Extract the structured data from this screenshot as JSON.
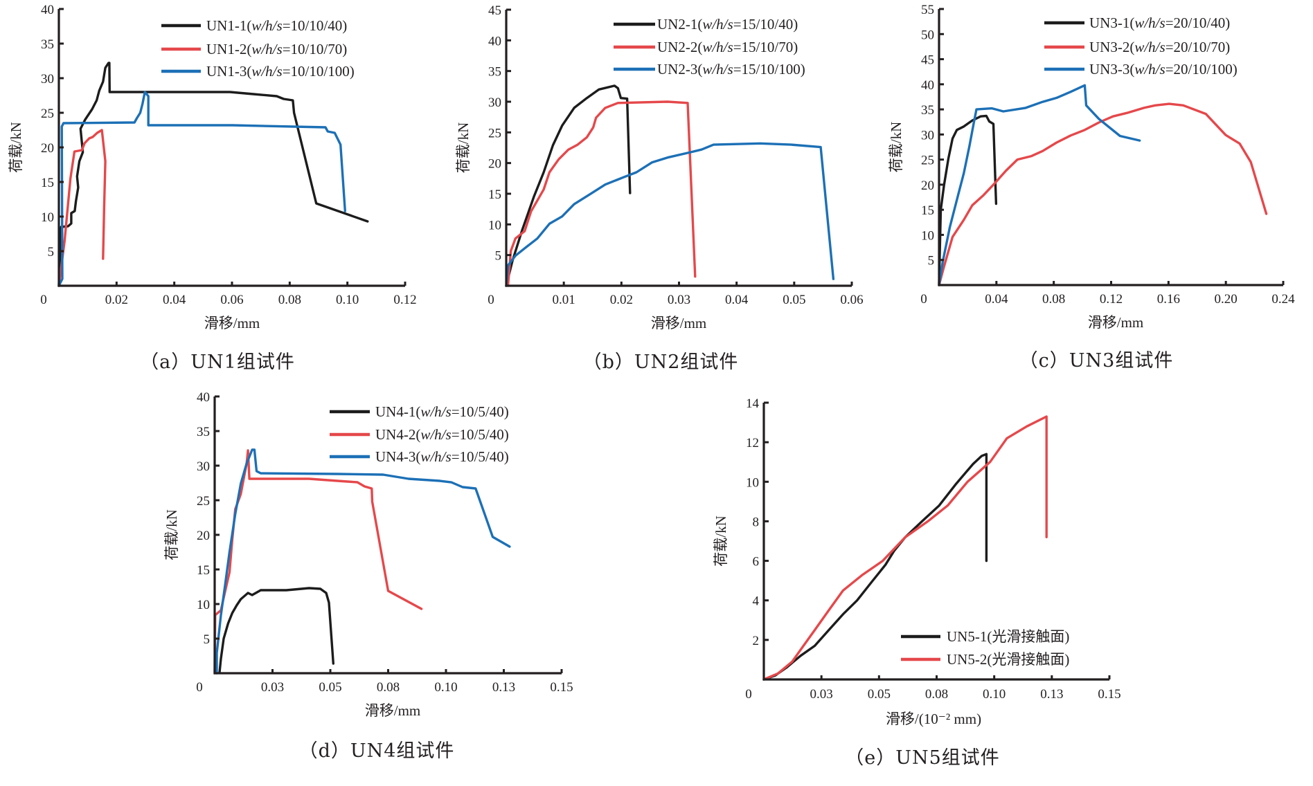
{
  "colors": {
    "black": "#1c1c1c",
    "red": "#e5484b",
    "blue": "#1c70b6",
    "axis": "#231f20"
  },
  "chart_data": [
    {
      "type": "line",
      "caption": "（a）UN1组试件",
      "xlabel": "滑移/mm",
      "ylabel": "荷载/kN",
      "xlim": [
        0,
        0.12
      ],
      "ylim": [
        0,
        40
      ],
      "xticks": [
        0,
        0.02,
        0.04,
        0.06,
        0.08,
        0.1,
        0.12
      ],
      "xtick_labels": [
        "0",
        "0.02",
        "0.04",
        "0.06",
        "0.08",
        "0.10",
        "0.12"
      ],
      "yticks": [
        5,
        10,
        15,
        20,
        25,
        30,
        35,
        40
      ],
      "ytick_labels": [
        "5",
        "10",
        "15",
        "20",
        "25",
        "30",
        "35",
        "40"
      ],
      "legend_position": "top-right",
      "series": [
        {
          "name": "UN1-1",
          "params": "w/h/s",
          "value": "=10/10/40",
          "color": "#1c1c1c",
          "x": [
            0,
            0.0008,
            0.0032,
            0.0043,
            0.0043,
            0.0055,
            0.0059,
            0.0067,
            0.0063,
            0.0071,
            0.0083,
            0.0075,
            0.0091,
            0.0115,
            0.0131,
            0.014,
            0.0153,
            0.0161,
            0.0172,
            0.0175,
            0.0176,
            0.0351,
            0.0593,
            0.0674,
            0.0755,
            0.0779,
            0.0811,
            0.0815,
            0.0892,
            0.107
          ],
          "y": [
            0,
            8.5,
            8.6,
            9,
            10.5,
            10.8,
            12.2,
            14.2,
            15.8,
            18,
            19.3,
            22.7,
            24,
            25.5,
            26.8,
            28.2,
            29.5,
            31.5,
            32.2,
            32.2,
            28,
            28,
            28,
            27.7,
            27.4,
            27,
            26.8,
            25,
            11.9,
            9.3
          ]
        },
        {
          "name": "UN1-2",
          "params": "w/h/s",
          "value": "=10/10/70",
          "color": "#e5484b",
          "x": [
            0,
            0.002,
            0.004,
            0.0054,
            0.008,
            0.0089,
            0.0105,
            0.0117,
            0.0133,
            0.0149,
            0.0161,
            0.0157,
            0.0153
          ],
          "y": [
            0,
            6.5,
            15.5,
            19.4,
            19.6,
            20.6,
            21.3,
            21.5,
            22.1,
            22.5,
            18,
            11.4,
            3.9
          ]
        },
        {
          "name": "UN1-3",
          "params": "w/h/s",
          "value": "=10/10/100",
          "color": "#1c70b6",
          "x": [
            0,
            0.0012,
            0.001,
            0.0016,
            0.0262,
            0.027,
            0.0282,
            0.029,
            0.0298,
            0.031,
            0.031,
            0.0601,
            0.0924,
            0.0932,
            0.0956,
            0.0976,
            0.0992
          ],
          "y": [
            0,
            1,
            23,
            23.5,
            23.6,
            24.2,
            25,
            26.3,
            28,
            27.4,
            23.2,
            23.2,
            22.9,
            22.3,
            22.1,
            20.4,
            10.8
          ]
        }
      ]
    },
    {
      "type": "line",
      "caption": "（b）UN2组试件",
      "xlabel": "滑移/mm",
      "ylabel": "荷载/kN",
      "xlim": [
        0,
        0.06
      ],
      "ylim": [
        0,
        45
      ],
      "xticks": [
        0,
        0.01,
        0.02,
        0.03,
        0.04,
        0.05,
        0.06
      ],
      "xtick_labels": [
        "0",
        "0.01",
        "0.02",
        "0.03",
        "0.04",
        "0.05",
        "0.06"
      ],
      "yticks": [
        5,
        10,
        15,
        20,
        25,
        30,
        35,
        40,
        45
      ],
      "ytick_labels": [
        "5",
        "10",
        "15",
        "20",
        "25",
        "30",
        "35",
        "40",
        "45"
      ],
      "legend_position": "top-right",
      "series": [
        {
          "name": "UN2-1",
          "params": "w/h/s",
          "value": "=15/10/40",
          "color": "#1c1c1c",
          "x": [
            0,
            0.0011,
            0.0027,
            0.0048,
            0.0065,
            0.0081,
            0.0097,
            0.0118,
            0.014,
            0.0161,
            0.0188,
            0.0194,
            0.0199,
            0.021,
            0.0215
          ],
          "y": [
            0,
            4.1,
            8.9,
            14.5,
            18.5,
            22.9,
            26.1,
            29,
            30.6,
            32,
            32.6,
            32.2,
            30.6,
            30.5,
            15.1
          ]
        },
        {
          "name": "UN2-2",
          "params": "w/h/s",
          "value": "=15/10/70",
          "color": "#e5484b",
          "x": [
            0.0003,
            0.0008,
            0.0016,
            0.0032,
            0.0043,
            0.0054,
            0.0065,
            0.0075,
            0.0091,
            0.0108,
            0.0124,
            0.014,
            0.0151,
            0.0156,
            0.0172,
            0.0194,
            0.028,
            0.0315,
            0.0328
          ],
          "y": [
            0,
            5.7,
            7.7,
            8.9,
            12.1,
            13.9,
            15.7,
            18.5,
            20.6,
            22.2,
            23,
            24.2,
            25.8,
            27.4,
            29,
            29.8,
            30,
            29.8,
            1.5
          ]
        },
        {
          "name": "UN2-3",
          "params": "w/h/s",
          "value": "=15/10/100",
          "color": "#1c70b6",
          "x": [
            0,
            0.0003,
            0.0016,
            0.0032,
            0.0054,
            0.0075,
            0.0097,
            0.0118,
            0.0145,
            0.0172,
            0.0204,
            0.0226,
            0.0253,
            0.028,
            0.0317,
            0.0339,
            0.036,
            0.0441,
            0.0495,
            0.0546,
            0.0568
          ],
          "y": [
            0,
            3.3,
            4.9,
            6.1,
            7.7,
            10.1,
            11.3,
            13.3,
            14.9,
            16.5,
            17.7,
            18.5,
            20.1,
            20.9,
            21.7,
            22.2,
            23,
            23.2,
            23,
            22.6,
            1.1
          ]
        }
      ]
    },
    {
      "type": "line",
      "caption": "（c）UN3组试件",
      "xlabel": "滑移/mm",
      "ylabel": "荷载/kN",
      "xlim": [
        0,
        0.24
      ],
      "ylim": [
        0,
        55
      ],
      "xticks": [
        0,
        0.04,
        0.08,
        0.12,
        0.16,
        0.2,
        0.24
      ],
      "xtick_labels": [
        "0",
        "0.04",
        "0.08",
        "0.12",
        "0.16",
        "0.20",
        "0.24"
      ],
      "yticks": [
        5,
        10,
        15,
        20,
        25,
        30,
        35,
        40,
        45,
        50,
        55
      ],
      "ytick_labels": [
        "5",
        "10",
        "15",
        "20",
        "25",
        "30",
        "35",
        "40",
        "45",
        "50",
        "55"
      ],
      "legend_position": "top-right",
      "series": [
        {
          "name": "UN3-1",
          "params": "w/h/s",
          "value": "=20/10/40",
          "color": "#1c1c1c",
          "x": [
            0,
            0.0012,
            0.0035,
            0.0065,
            0.0094,
            0.0124,
            0.0173,
            0.0232,
            0.029,
            0.033,
            0.035,
            0.0379,
            0.0398
          ],
          "y": [
            0,
            15,
            19.9,
            25.2,
            29.2,
            30.9,
            31.6,
            32.8,
            33.6,
            33.7,
            32.6,
            32.1,
            16.2
          ]
        },
        {
          "name": "UN3-2",
          "params": "w/h/s",
          "value": "=20/10/70",
          "color": "#e5484b",
          "x": [
            0,
            0.0035,
            0.0094,
            0.0173,
            0.0232,
            0.031,
            0.0389,
            0.0467,
            0.0546,
            0.0644,
            0.0722,
            0.082,
            0.0918,
            0.1016,
            0.1115,
            0.1213,
            0.1311,
            0.1429,
            0.1507,
            0.1605,
            0.1703,
            0.186,
            0.1998,
            0.2096,
            0.2174,
            0.2282
          ],
          "y": [
            0,
            3.7,
            9.6,
            13,
            15.9,
            17.9,
            20.3,
            22.8,
            25,
            25.7,
            26.7,
            28.4,
            29.8,
            30.9,
            32.4,
            33.6,
            34.3,
            35.3,
            35.8,
            36.1,
            35.8,
            34.1,
            29.9,
            28.2,
            24.5,
            14.2
          ]
        },
        {
          "name": "UN3-3",
          "params": "w/h/s",
          "value": "=20/10/100",
          "color": "#1c70b6",
          "x": [
            0,
            0.0026,
            0.0075,
            0.0133,
            0.0173,
            0.0212,
            0.0241,
            0.0261,
            0.0369,
            0.0448,
            0.0604,
            0.0722,
            0.082,
            0.0918,
            0.1016,
            0.1026,
            0.1115,
            0.1262,
            0.1399
          ],
          "y": [
            0,
            4.7,
            11.5,
            17.9,
            22.3,
            27.7,
            32.1,
            35,
            35.2,
            34.6,
            35.3,
            36.5,
            37.3,
            38.5,
            39.8,
            35.8,
            33.1,
            29.7,
            28.8
          ]
        }
      ]
    },
    {
      "type": "line",
      "caption": "（d）UN4组试件",
      "xlabel": "滑移/mm",
      "ylabel": "荷载/kN",
      "xlim": [
        0,
        0.15
      ],
      "ylim": [
        0,
        40
      ],
      "xticks": [
        0,
        0.025,
        0.05,
        0.075,
        0.1,
        0.125,
        0.15
      ],
      "xtick_labels": [
        "0",
        "0.03",
        "0.05",
        "0.08",
        "0.10",
        "0.13",
        "0.15"
      ],
      "yticks": [
        5,
        10,
        15,
        20,
        25,
        30,
        35,
        40
      ],
      "ytick_labels": [
        "5",
        "10",
        "15",
        "20",
        "25",
        "30",
        "35",
        "40"
      ],
      "legend_position": "top-right",
      "series": [
        {
          "name": "UN4-1",
          "params": "w/h/s",
          "value": "=10/5/40",
          "color": "#1c1c1c",
          "x": [
            0.0021,
            0.0027,
            0.0039,
            0.0058,
            0.0076,
            0.0095,
            0.0113,
            0.0144,
            0.0162,
            0.0199,
            0.031,
            0.0408,
            0.0457,
            0.0482,
            0.0494,
            0.0513
          ],
          "y": [
            0.1,
            2.1,
            5,
            7.2,
            8.7,
            9.8,
            10.7,
            11.6,
            11.3,
            12,
            12,
            12.3,
            12.2,
            11.6,
            10.2,
            1.4
          ]
        },
        {
          "name": "UN4-2",
          "params": "w/h/s",
          "value": "=10/5/40",
          "color": "#e5484b",
          "x": [
            0,
            0.0002,
            0.0027,
            0.0039,
            0.0064,
            0.0076,
            0.0089,
            0.0113,
            0.0138,
            0.0144,
            0.015,
            0.0408,
            0.0531,
            0.0617,
            0.0648,
            0.0679,
            0.0681,
            0.075,
            0.0894
          ],
          "y": [
            0,
            8.4,
            9.1,
            10.9,
            14.6,
            19.3,
            23.7,
            25.9,
            30.3,
            32.2,
            28.1,
            28.1,
            27.8,
            27.6,
            27,
            26.7,
            24.8,
            11.9,
            9.3
          ]
        },
        {
          "name": "UN4-3",
          "params": "w/h/s",
          "value": "=10/5/40",
          "color": "#1c70b6",
          "x": [
            0.0009,
            0.0009,
            0.0027,
            0.0045,
            0.0064,
            0.0089,
            0.0113,
            0.0138,
            0.0162,
            0.0172,
            0.0181,
            0.0199,
            0.0531,
            0.0728,
            0.0838,
            0.0974,
            0.1023,
            0.1072,
            0.1128,
            0.1202,
            0.1275
          ],
          "y": [
            0,
            2.9,
            8.4,
            12.7,
            17.5,
            23,
            27.4,
            30.3,
            32.3,
            32.3,
            29.2,
            28.9,
            28.8,
            28.7,
            28.1,
            27.8,
            27.6,
            26.9,
            26.7,
            19.7,
            18.3
          ]
        }
      ]
    },
    {
      "type": "line",
      "caption": "（e）UN5组试件",
      "xlabel": "滑移/(10⁻² mm)",
      "ylabel": "荷载/kN",
      "xlim": [
        0,
        0.15
      ],
      "ylim": [
        0,
        14
      ],
      "xticks": [
        0,
        0.025,
        0.05,
        0.075,
        0.1,
        0.125,
        0.15
      ],
      "xtick_labels": [
        "0",
        "0.03",
        "0.05",
        "0.08",
        "0.10",
        "0.13",
        "0.15"
      ],
      "yticks": [
        2,
        4,
        6,
        8,
        10,
        12,
        14
      ],
      "ytick_labels": [
        "2",
        "4",
        "6",
        "8",
        "10",
        "12",
        "14"
      ],
      "legend_position": "bottom-right",
      "series": [
        {
          "name": "UN5-1",
          "params": "",
          "value": "(光滑接触面)",
          "color": "#1c1c1c",
          "x": [
            0,
            0.0049,
            0.0098,
            0.016,
            0.0221,
            0.0282,
            0.0344,
            0.0405,
            0.0466,
            0.0528,
            0.0565,
            0.0614,
            0.0687,
            0.0761,
            0.0835,
            0.0908,
            0.0945,
            0.0966,
            0.0966
          ],
          "y": [
            0,
            0.2,
            0.6,
            1.2,
            1.7,
            2.5,
            3.3,
            4,
            4.9,
            5.8,
            6.5,
            7.2,
            8,
            8.8,
            9.9,
            10.9,
            11.3,
            11.4,
            6
          ]
        },
        {
          "name": "UN5-2",
          "params": "",
          "value": "(光滑接触面)",
          "color": "#e5484b",
          "x": [
            0,
            0.0061,
            0.0123,
            0.0172,
            0.0221,
            0.0282,
            0.0344,
            0.0429,
            0.0516,
            0.0614,
            0.0712,
            0.0798,
            0.0884,
            0.0982,
            0.1055,
            0.1141,
            0.1227,
            0.1227
          ],
          "y": [
            0,
            0.3,
            0.9,
            1.7,
            2.5,
            3.5,
            4.5,
            5.3,
            6,
            7.2,
            8,
            8.8,
            10,
            11,
            12.2,
            12.8,
            13.3,
            7.2
          ]
        }
      ]
    }
  ]
}
